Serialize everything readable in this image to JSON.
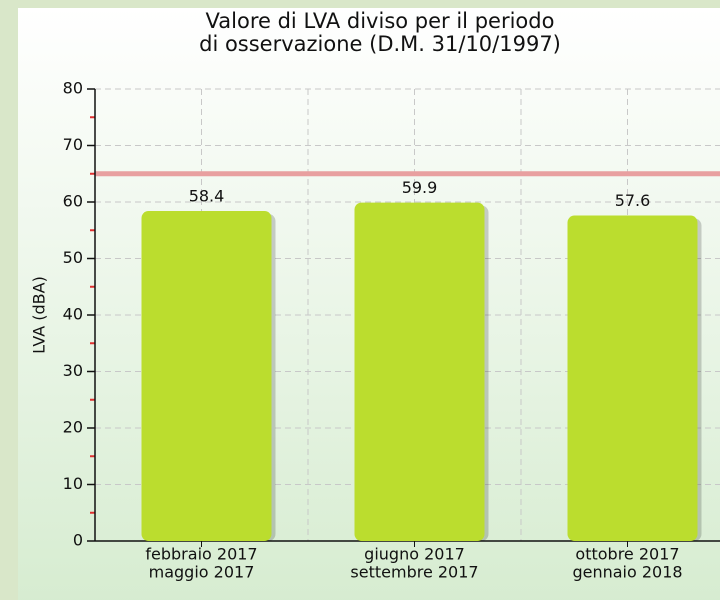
{
  "chart_data": {
    "type": "bar",
    "title": [
      "Valore di LVA diviso per il periodo",
      "di osservazione (D.M. 31/10/1997)"
    ],
    "y_label": "LVA (dBA)",
    "categories": [
      [
        "febbraio 2017",
        "maggio 2017"
      ],
      [
        "giugno 2017",
        "settembre 2017"
      ],
      [
        "ottobre 2017",
        "gennaio 2018"
      ]
    ],
    "values": [
      58.4,
      59.9,
      57.6
    ],
    "color": "#bbdd2e",
    "reference_line": 65,
    "reference_color": "#e8a0a0",
    "ylim": [
      0,
      80
    ],
    "yticks": [
      0,
      10,
      20,
      30,
      40,
      50,
      60,
      70,
      80
    ],
    "grid": true
  }
}
